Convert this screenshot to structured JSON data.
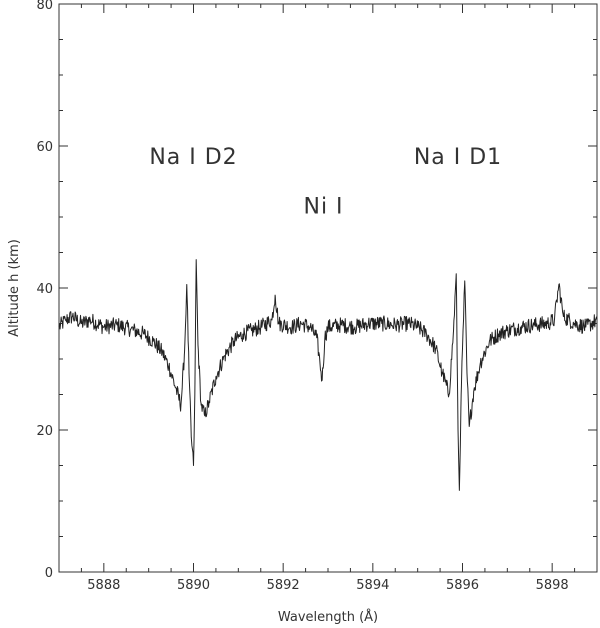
{
  "chart_data": {
    "type": "line",
    "title": "",
    "xlabel": "Wavelength (Å)",
    "ylabel": "Altitude h (km)",
    "xlim": [
      5887.0,
      5899.0
    ],
    "ylim": [
      0,
      80
    ],
    "x_ticks": [
      5888,
      5890,
      5892,
      5894,
      5896,
      5898
    ],
    "x_tick_labels": [
      "5888",
      "5890",
      "5892",
      "5894",
      "5896",
      "5898"
    ],
    "y_ticks": [
      0,
      20,
      40,
      60,
      80
    ],
    "y_tick_labels": [
      "0",
      "20",
      "40",
      "60",
      "80"
    ],
    "grid": false,
    "annotations": [
      {
        "text": "Na I D2",
        "x": 5890.0,
        "y": 57.5
      },
      {
        "text": "Ni I",
        "x": 5892.9,
        "y": 50.5
      },
      {
        "text": "Na I D1",
        "x": 5895.9,
        "y": 57.5
      }
    ],
    "series": [
      {
        "color": "#222222",
        "points": [
          [
            5887.0,
            34.5
          ],
          [
            5887.15,
            35.5
          ],
          [
            5887.3,
            36.0
          ],
          [
            5887.5,
            35.0
          ],
          [
            5887.7,
            35.5
          ],
          [
            5888.0,
            34.5
          ],
          [
            5888.3,
            34.8
          ],
          [
            5888.6,
            34.2
          ],
          [
            5888.9,
            33.5
          ],
          [
            5889.1,
            32.5
          ],
          [
            5889.3,
            31.0
          ],
          [
            5889.45,
            29.0
          ],
          [
            5889.6,
            26.0
          ],
          [
            5889.72,
            23.5
          ],
          [
            5889.8,
            31.0
          ],
          [
            5889.85,
            40.5
          ],
          [
            5889.9,
            28.0
          ],
          [
            5889.95,
            19.0
          ],
          [
            5890.0,
            15.0
          ],
          [
            5890.03,
            25.0
          ],
          [
            5890.06,
            44.0
          ],
          [
            5890.1,
            32.0
          ],
          [
            5890.17,
            23.5
          ],
          [
            5890.25,
            22.0
          ],
          [
            5890.35,
            24.0
          ],
          [
            5890.5,
            27.5
          ],
          [
            5890.7,
            30.5
          ],
          [
            5890.9,
            32.5
          ],
          [
            5891.1,
            33.5
          ],
          [
            5891.3,
            34.0
          ],
          [
            5891.5,
            34.5
          ],
          [
            5891.75,
            35.5
          ],
          [
            5891.82,
            39.0
          ],
          [
            5891.9,
            35.0
          ],
          [
            5892.2,
            34.5
          ],
          [
            5892.4,
            35.0
          ],
          [
            5892.6,
            34.5
          ],
          [
            5892.75,
            33.0
          ],
          [
            5892.82,
            29.5
          ],
          [
            5892.87,
            27.0
          ],
          [
            5892.93,
            33.0
          ],
          [
            5893.0,
            34.5
          ],
          [
            5893.3,
            34.8
          ],
          [
            5893.6,
            34.5
          ],
          [
            5893.9,
            35.0
          ],
          [
            5894.2,
            35.0
          ],
          [
            5894.5,
            34.8
          ],
          [
            5894.8,
            35.0
          ],
          [
            5895.0,
            34.5
          ],
          [
            5895.2,
            33.5
          ],
          [
            5895.4,
            31.5
          ],
          [
            5895.55,
            28.0
          ],
          [
            5895.7,
            25.0
          ],
          [
            5895.8,
            34.0
          ],
          [
            5895.86,
            42.0
          ],
          [
            5895.9,
            20.0
          ],
          [
            5895.93,
            11.5
          ],
          [
            5895.97,
            25.0
          ],
          [
            5896.05,
            41.0
          ],
          [
            5896.1,
            28.0
          ],
          [
            5896.15,
            20.5
          ],
          [
            5896.25,
            25.5
          ],
          [
            5896.4,
            29.5
          ],
          [
            5896.6,
            32.5
          ],
          [
            5896.8,
            33.5
          ],
          [
            5897.0,
            34.0
          ],
          [
            5897.3,
            34.5
          ],
          [
            5897.6,
            34.8
          ],
          [
            5897.9,
            35.0
          ],
          [
            5898.05,
            35.5
          ],
          [
            5898.15,
            40.5
          ],
          [
            5898.25,
            36.0
          ],
          [
            5898.5,
            35.0
          ],
          [
            5898.75,
            34.5
          ],
          [
            5899.0,
            35.5
          ]
        ]
      }
    ]
  }
}
